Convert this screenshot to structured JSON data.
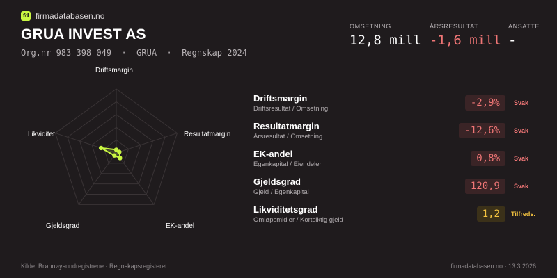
{
  "brand": {
    "logo_text": "fd",
    "name": "firmadatabasen.no",
    "accent": "#c8f542"
  },
  "company": {
    "name": "GRUA INVEST AS",
    "meta": "Org.nr 983 398 049  ·  GRUA  ·  Regnskap 2024"
  },
  "kpis": {
    "omsetning": {
      "label": "OMSETNING",
      "value": "12,8 mill"
    },
    "resultat": {
      "label": "ÅRSRESULTAT",
      "value": "-1,6 mill",
      "color": "#f07676"
    },
    "ansatte": {
      "label": "ANSATTE",
      "value": "-"
    }
  },
  "radar": {
    "axes": [
      "Driftsmargin",
      "Resultatmargin",
      "EK-andel",
      "Gjeldsgrad",
      "Likviditet"
    ],
    "scores": [
      0.05,
      0.05,
      0.1,
      0.05,
      0.25
    ],
    "fill_color": "#c8f542"
  },
  "metrics": [
    {
      "name": "Driftsmargin",
      "desc": "Driftsresultat / Omsetning",
      "value": "-2,9%",
      "status": "Svak",
      "level": "svak"
    },
    {
      "name": "Resultatmargin",
      "desc": "Årsresultat / Omsetning",
      "value": "-12,6%",
      "status": "Svak",
      "level": "svak"
    },
    {
      "name": "EK-andel",
      "desc": "Egenkapital / Eiendeler",
      "value": "0,8%",
      "status": "Svak",
      "level": "svak"
    },
    {
      "name": "Gjeldsgrad",
      "desc": "Gjeld / Egenkapital",
      "value": "120,9",
      "status": "Svak",
      "level": "svak"
    },
    {
      "name": "Likviditetsgrad",
      "desc": "Omløpsmidler / Kortsiktig gjeld",
      "value": "1,2",
      "status": "Tilfreds.",
      "level": "tilfreds"
    }
  ],
  "footer": {
    "source": "Kilde: Brønnøysundregistrene · Regnskapsregisteret",
    "site_date": "firmadatabasen.no · 13.3.2026"
  }
}
